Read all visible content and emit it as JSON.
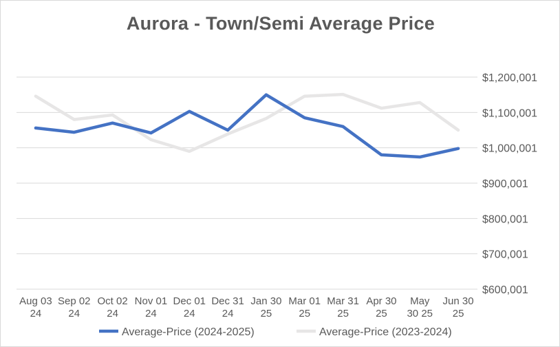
{
  "chart_data": {
    "type": "line",
    "title": "Aurora  - Town/Semi Average Price",
    "categories": [
      [
        "Aug 03",
        "24"
      ],
      [
        "Sep 02",
        "24"
      ],
      [
        "Oct 02",
        "24"
      ],
      [
        "Nov 01",
        "24"
      ],
      [
        "Dec 01",
        "24"
      ],
      [
        "Dec 31",
        "24"
      ],
      [
        "Jan 30",
        "25"
      ],
      [
        "Mar 01",
        "25"
      ],
      [
        "Mar 31",
        "25"
      ],
      [
        "Apr 30",
        "25"
      ],
      [
        "May",
        "30 25"
      ],
      [
        "Jun 30",
        "25"
      ]
    ],
    "y_ticks": [
      "$600,001",
      "$700,001",
      "$800,001",
      "$900,001",
      "$1,000,001",
      "$1,100,001",
      "$1,200,001"
    ],
    "ylim": [
      600001,
      1200001
    ],
    "y_axis_position": "right",
    "grid": true,
    "legend_position": "bottom",
    "series": [
      {
        "name": "Average-Price (2024-2025)",
        "color": "#4472c4",
        "values": [
          1056000,
          1044000,
          1070000,
          1042000,
          1103000,
          1050000,
          1150000,
          1085000,
          1060000,
          980000,
          974000,
          998000
        ]
      },
      {
        "name": "Average-Price (2023-2024)",
        "color": "#e7e6e6",
        "values": [
          1146000,
          1080000,
          1093000,
          1023000,
          990000,
          1039000,
          1083000,
          1146000,
          1151000,
          1112000,
          1128000,
          1050000
        ]
      }
    ]
  }
}
